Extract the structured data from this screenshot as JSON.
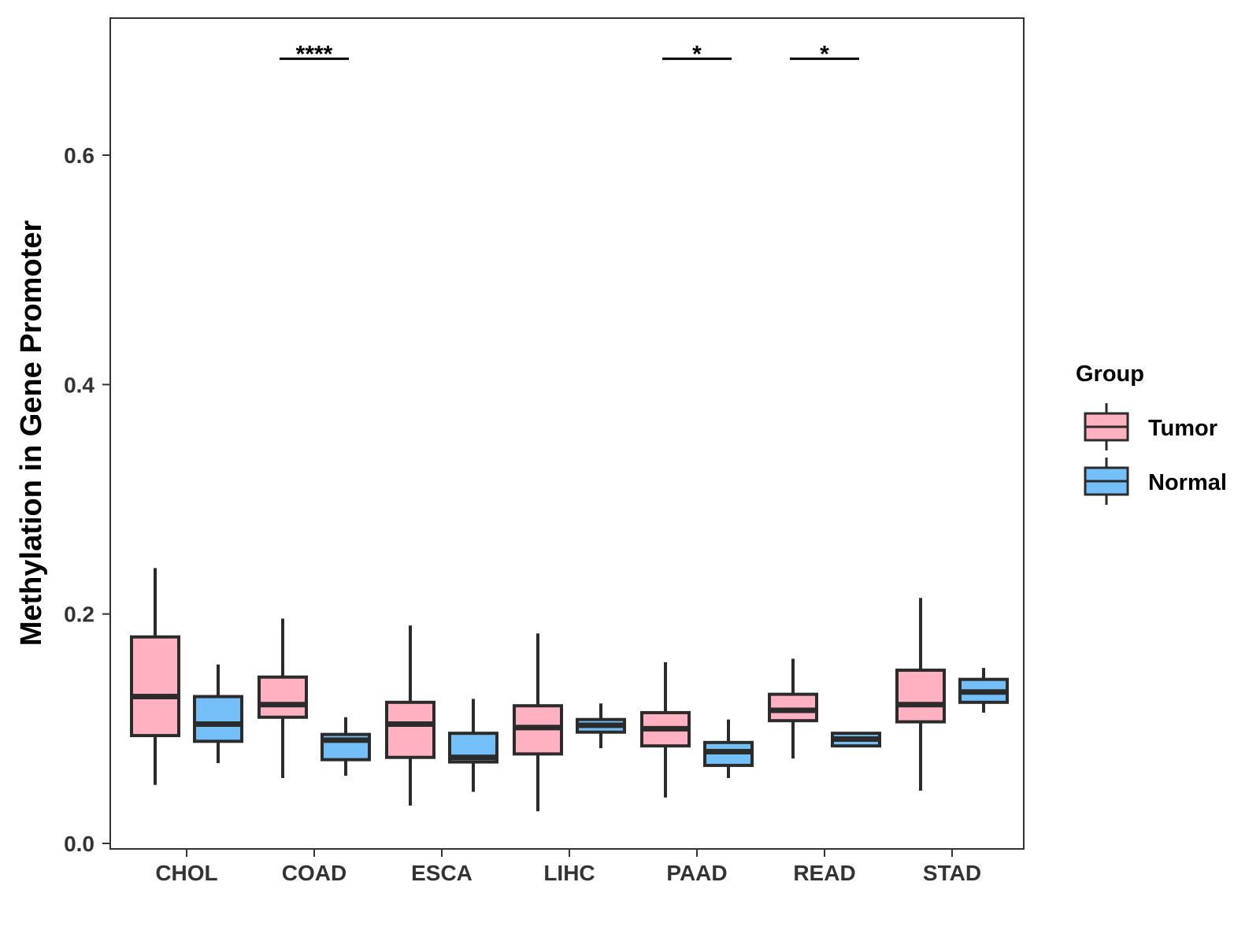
{
  "chart_data": {
    "type": "boxplot",
    "title": "",
    "xlabel": "",
    "ylabel": "Methylation in Gene Promoter",
    "ylim": [
      0.0,
      0.7
    ],
    "yticks": [
      0.0,
      0.2,
      0.4,
      0.6
    ],
    "ytick_labels": [
      "0.0",
      "0.2",
      "0.4",
      "0.6"
    ],
    "grid": false,
    "legend": {
      "title": "Group",
      "position": "right",
      "entries": [
        {
          "name": "Tumor",
          "color": "#FFB0C1"
        },
        {
          "name": "Normal",
          "color": "#74BFF7"
        }
      ]
    },
    "categories": [
      "CHOL",
      "COAD",
      "ESCA",
      "LIHC",
      "PAAD",
      "READ",
      "STAD"
    ],
    "series": [
      {
        "name": "Tumor",
        "color": "#FFB0C1",
        "boxes": [
          {
            "min": 0.051,
            "q1": 0.094,
            "median": 0.128,
            "q3": 0.18,
            "max": 0.24
          },
          {
            "min": 0.057,
            "q1": 0.11,
            "median": 0.121,
            "q3": 0.145,
            "max": 0.196
          },
          {
            "min": 0.033,
            "q1": 0.075,
            "median": 0.104,
            "q3": 0.123,
            "max": 0.19
          },
          {
            "min": 0.028,
            "q1": 0.078,
            "median": 0.101,
            "q3": 0.12,
            "max": 0.183
          },
          {
            "min": 0.04,
            "q1": 0.085,
            "median": 0.1,
            "q3": 0.114,
            "max": 0.158
          },
          {
            "min": 0.074,
            "q1": 0.107,
            "median": 0.116,
            "q3": 0.13,
            "max": 0.161
          },
          {
            "min": 0.046,
            "q1": 0.106,
            "median": 0.121,
            "q3": 0.151,
            "max": 0.214
          }
        ]
      },
      {
        "name": "Normal",
        "color": "#74BFF7",
        "boxes": [
          {
            "min": 0.07,
            "q1": 0.089,
            "median": 0.104,
            "q3": 0.128,
            "max": 0.156
          },
          {
            "min": 0.059,
            "q1": 0.073,
            "median": 0.09,
            "q3": 0.095,
            "max": 0.11
          },
          {
            "min": 0.045,
            "q1": 0.071,
            "median": 0.075,
            "q3": 0.096,
            "max": 0.126
          },
          {
            "min": 0.083,
            "q1": 0.097,
            "median": 0.103,
            "q3": 0.108,
            "max": 0.122
          },
          {
            "min": 0.057,
            "q1": 0.068,
            "median": 0.08,
            "q3": 0.088,
            "max": 0.108
          },
          {
            "min": 0.084,
            "q1": 0.085,
            "median": 0.091,
            "q3": 0.096,
            "max": 0.096
          },
          {
            "min": 0.114,
            "q1": 0.123,
            "median": 0.132,
            "q3": 0.143,
            "max": 0.153
          }
        ]
      }
    ],
    "significance": [
      {
        "category": "COAD",
        "label": "****",
        "y": 0.684
      },
      {
        "category": "PAAD",
        "label": "*",
        "y": 0.684
      },
      {
        "category": "READ",
        "label": "*",
        "y": 0.684
      }
    ]
  }
}
